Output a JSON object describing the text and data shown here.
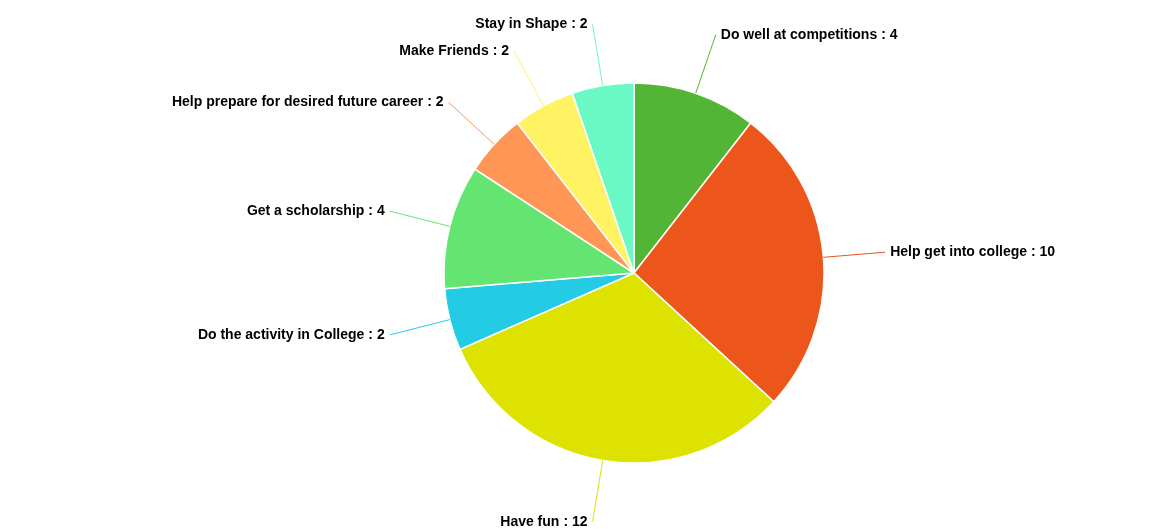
{
  "chart_data": {
    "type": "pie",
    "categories": [
      "Do well at competitions",
      "Help get into college",
      "Have fun",
      "Do the activity in College",
      "Get a scholarship",
      "Help prepare for desired future career",
      "Make Friends",
      "Stay in Shape"
    ],
    "values": [
      4,
      10,
      12,
      2,
      4,
      2,
      2,
      2
    ],
    "value_labels": [
      ": 4",
      ": 10",
      ": 12",
      ": 2",
      ": 4",
      ": 2",
      ": 2",
      ": 2"
    ],
    "colors": [
      "#52b535",
      "#ec561b",
      "#dde200",
      "#24cbe5",
      "#64e572",
      "#ff9655",
      "#fff263",
      "#6af9c4"
    ]
  }
}
